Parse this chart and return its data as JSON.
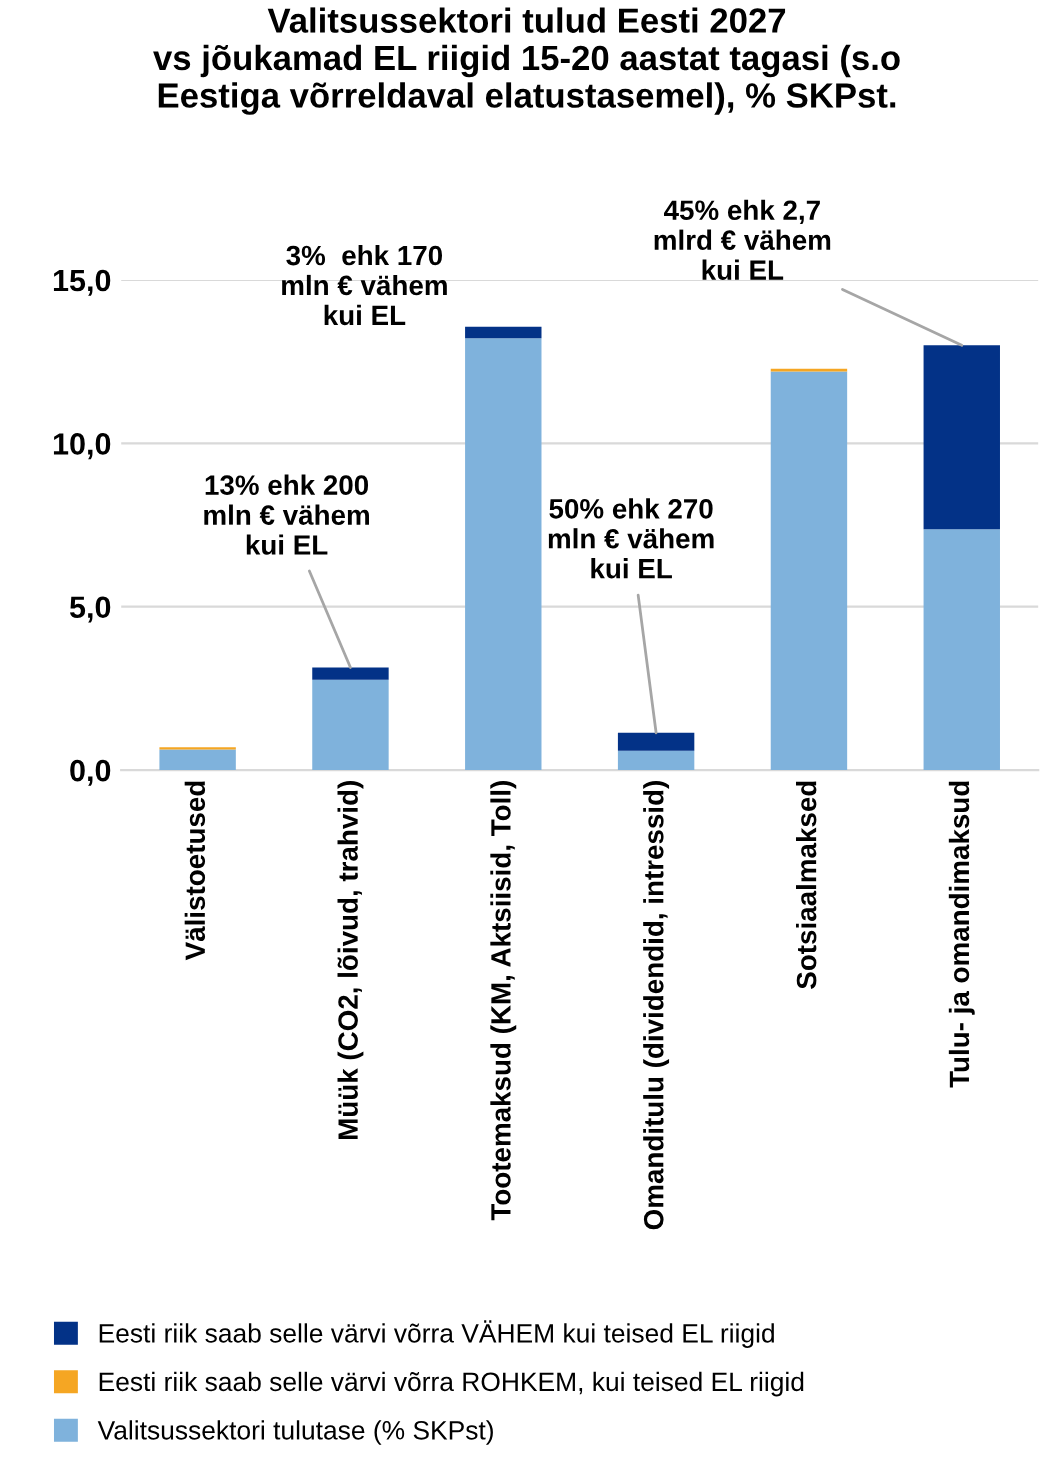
{
  "chart_data": {
    "type": "bar",
    "title": "Valitsussektori tulud Eesti 2027\nvs jõukamad EL riigid 15-20 aastat tagasi (s.o\nEestiga võrreldaval elatustasemel), % SKPst.",
    "categories": [
      "Välistoetused",
      "Müük (CO2, lõivud, trahvid)",
      "Tootemaksud (KM, Aktsiisid, Toll)",
      "Omanditulu (dividendid, intressid)",
      "Sotsiaalmaksed",
      "Tulu- ja omandimaksud"
    ],
    "stacked": true,
    "series": [
      {
        "name": "Valitsussektori tulutase (% SKPst)",
        "color": "#7fb2dc",
        "values": [
          0.63,
          2.76,
          13.22,
          0.59,
          12.2,
          7.37
        ]
      },
      {
        "name": "Eesti riik saab selle värvi võrra VÄHEM kui teised EL riigid",
        "color": "#033287",
        "values": [
          null,
          0.38,
          0.35,
          0.55,
          null,
          5.63
        ]
      },
      {
        "name": "Eesti riik saab selle värvi võrra ROHKEM, kui teised EL riigid",
        "color": "#f5a623",
        "values": [
          0.07,
          null,
          null,
          null,
          0.08,
          null
        ]
      }
    ],
    "ylim": [
      0,
      15
    ],
    "yticks": [
      {
        "value": 0,
        "label": "0,0"
      },
      {
        "value": 5,
        "label": "5,0"
      },
      {
        "value": 10,
        "label": "10,0"
      },
      {
        "value": 15,
        "label": "15,0"
      }
    ],
    "grid": "y",
    "legend": "bottom",
    "annotations": [
      {
        "text": "13% ehk 200\nmln € vähem\nkui EL",
        "x": "Müük (CO2, lõivud, trahvid)",
        "y": 3.14
      },
      {
        "text": "3%  ehk 170\nmln € vähem\nkui EL",
        "x": "Tootemaksud (KM, Aktsiisid, Toll)",
        "y": 13.57
      },
      {
        "text": "50% ehk 270\nmln € vähem\nkui EL",
        "x": "Omanditulu (dividendid, intressid)",
        "y": 1.14
      },
      {
        "text": "45% ehk 2,7\nmlrd € vähem\nkui EL",
        "x": "Tulu- ja omandimaksud",
        "y": 13.0
      }
    ]
  }
}
